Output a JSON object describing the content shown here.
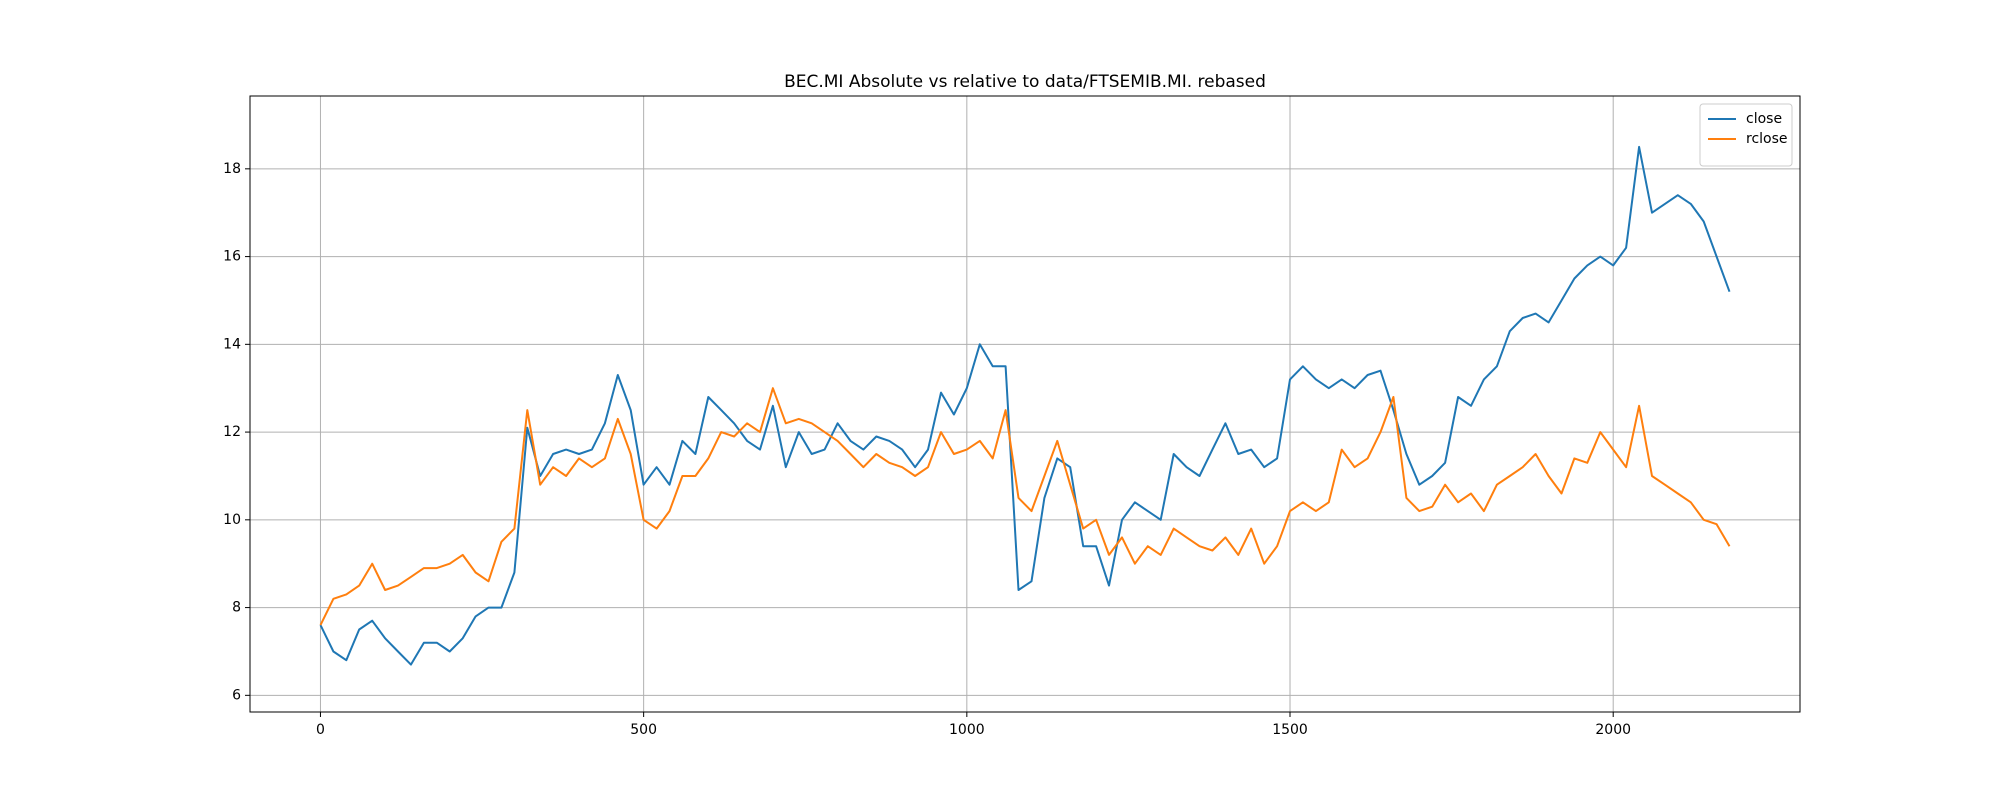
{
  "chart_data": {
    "type": "line",
    "title": "BEC.MI Absolute vs relative to data/FTSEMIB.MI. rebased",
    "x": [
      0,
      20,
      40,
      60,
      80,
      100,
      120,
      140,
      160,
      180,
      200,
      220,
      240,
      260,
      280,
      300,
      320,
      340,
      360,
      380,
      400,
      420,
      440,
      460,
      480,
      500,
      520,
      540,
      560,
      580,
      600,
      620,
      640,
      660,
      680,
      700,
      720,
      740,
      760,
      780,
      800,
      820,
      840,
      860,
      880,
      900,
      920,
      940,
      960,
      980,
      1000,
      1020,
      1040,
      1060,
      1080,
      1100,
      1120,
      1140,
      1160,
      1180,
      1200,
      1220,
      1240,
      1260,
      1280,
      1300,
      1320,
      1340,
      1360,
      1380,
      1400,
      1420,
      1440,
      1460,
      1480,
      1500,
      1520,
      1540,
      1560,
      1580,
      1600,
      1620,
      1640,
      1660,
      1680,
      1700,
      1720,
      1740,
      1760,
      1780,
      1800,
      1820,
      1840,
      1860,
      1880,
      1900,
      1920,
      1940,
      1960,
      1980,
      2000,
      2020,
      2040,
      2060,
      2080,
      2100,
      2120,
      2140,
      2160,
      2180
    ],
    "series": [
      {
        "name": "close",
        "color": "#1f77b4",
        "values": [
          7.6,
          7.0,
          6.8,
          7.5,
          7.7,
          7.3,
          7.0,
          6.7,
          7.2,
          7.2,
          7.0,
          7.3,
          7.8,
          8.0,
          8.0,
          8.8,
          12.1,
          11.0,
          11.5,
          11.6,
          11.5,
          11.6,
          12.2,
          13.3,
          12.5,
          10.8,
          11.2,
          10.8,
          11.8,
          11.5,
          12.8,
          12.5,
          12.2,
          11.8,
          11.6,
          12.6,
          11.2,
          12.0,
          11.5,
          11.6,
          12.2,
          11.8,
          11.6,
          11.9,
          11.8,
          11.6,
          11.2,
          11.6,
          12.9,
          12.4,
          13.0,
          14.0,
          13.5,
          13.5,
          8.4,
          8.6,
          10.5,
          11.4,
          11.2,
          9.4,
          9.4,
          8.5,
          10.0,
          10.4,
          10.2,
          10.0,
          11.5,
          11.2,
          11.0,
          11.6,
          12.2,
          11.5,
          11.6,
          11.2,
          11.4,
          13.2,
          13.5,
          13.2,
          13.0,
          13.2,
          13.0,
          13.3,
          13.4,
          12.5,
          11.5,
          10.8,
          11.0,
          11.3,
          12.8,
          12.6,
          13.2,
          13.5,
          14.3,
          14.6,
          14.7,
          14.5,
          15.0,
          15.5,
          15.8,
          16.0,
          15.8,
          16.2,
          18.5,
          17.0,
          17.2,
          17.4,
          17.2,
          16.8,
          16.0,
          15.2
        ]
      },
      {
        "name": "rclose",
        "color": "#ff7f0e",
        "values": [
          7.6,
          8.2,
          8.3,
          8.5,
          9.0,
          8.4,
          8.5,
          8.7,
          8.9,
          8.9,
          9.0,
          9.2,
          8.8,
          8.6,
          9.5,
          9.8,
          12.5,
          10.8,
          11.2,
          11.0,
          11.4,
          11.2,
          11.4,
          12.3,
          11.5,
          10.0,
          9.8,
          10.2,
          11.0,
          11.0,
          11.4,
          12.0,
          11.9,
          12.2,
          12.0,
          13.0,
          12.2,
          12.3,
          12.2,
          12.0,
          11.8,
          11.5,
          11.2,
          11.5,
          11.3,
          11.2,
          11.0,
          11.2,
          12.0,
          11.5,
          11.6,
          11.8,
          11.4,
          12.5,
          10.5,
          10.2,
          11.0,
          11.8,
          10.8,
          9.8,
          10.0,
          9.2,
          9.6,
          9.0,
          9.4,
          9.2,
          9.8,
          9.6,
          9.4,
          9.3,
          9.6,
          9.2,
          9.8,
          9.0,
          9.4,
          10.2,
          10.4,
          10.2,
          10.4,
          11.6,
          11.2,
          11.4,
          12.0,
          12.8,
          10.5,
          10.2,
          10.3,
          10.8,
          10.4,
          10.6,
          10.2,
          10.8,
          11.0,
          11.2,
          11.5,
          11.0,
          10.6,
          11.4,
          11.3,
          12.0,
          11.6,
          11.2,
          12.6,
          11.0,
          10.8,
          10.6,
          10.4,
          10.0,
          9.9,
          9.4
        ]
      }
    ],
    "xlim": [
      -109,
      2289
    ],
    "ylim": [
      5.62,
      19.66
    ],
    "xticks": [
      0,
      500,
      1000,
      1500,
      2000
    ],
    "yticks": [
      6,
      8,
      10,
      12,
      14,
      16,
      18
    ],
    "grid": true,
    "legend": "upper right"
  }
}
